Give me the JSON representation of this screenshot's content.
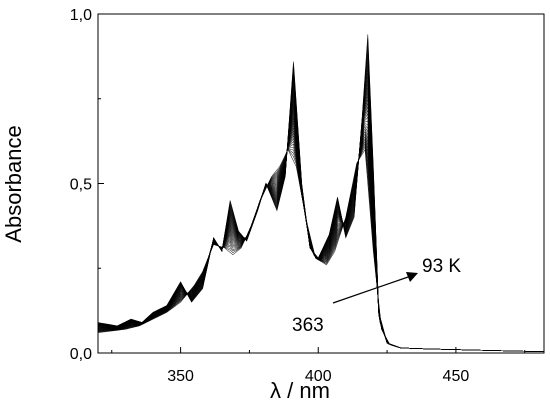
{
  "chart_data": {
    "type": "line",
    "xlabel": "λ / nm",
    "ylabel": "Absorbance",
    "xlim": [
      320,
      482
    ],
    "ylim": [
      0,
      1.0
    ],
    "x_ticks": [
      350,
      400,
      450
    ],
    "y_ticks": [
      0.0,
      0.5,
      1.0
    ],
    "x_tick_labels": [
      "350",
      "400",
      "450"
    ],
    "y_tick_labels": [
      "0,0",
      "0,5",
      "1,0"
    ],
    "grid": false,
    "legend": "none",
    "line_color": "#000000",
    "annotations": {
      "start_label": "363",
      "end_label": "93 K"
    },
    "series_note": "family of spectra from 363 K to 93 K",
    "series_count": 40,
    "series_highT": {
      "name": "363",
      "x": [
        320,
        330,
        335,
        340,
        345,
        350,
        355,
        358,
        362,
        366,
        369,
        372,
        376,
        379,
        383,
        386,
        389,
        392,
        396,
        399,
        403,
        406,
        410,
        414,
        417,
        420,
        423,
        426,
        430,
        440,
        450,
        460,
        470,
        482
      ],
      "y": [
        0.06,
        0.07,
        0.08,
        0.1,
        0.12,
        0.15,
        0.2,
        0.24,
        0.32,
        0.31,
        0.29,
        0.31,
        0.38,
        0.45,
        0.52,
        0.55,
        0.6,
        0.55,
        0.38,
        0.28,
        0.26,
        0.3,
        0.4,
        0.56,
        0.6,
        0.3,
        0.07,
        0.025,
        0.015,
        0.012,
        0.01,
        0.008,
        0.006,
        0.004
      ]
    },
    "series_lowT": {
      "name": "93 K",
      "x": [
        320,
        327,
        332,
        336,
        340,
        345,
        350,
        354,
        358,
        362,
        365,
        368,
        371,
        374,
        378,
        381,
        385,
        388,
        391,
        394,
        397,
        400,
        404,
        407,
        410,
        413,
        416,
        418,
        420,
        422,
        425,
        430,
        440,
        450,
        460,
        470,
        482
      ],
      "y": [
        0.09,
        0.08,
        0.1,
        0.09,
        0.12,
        0.14,
        0.21,
        0.15,
        0.19,
        0.34,
        0.3,
        0.45,
        0.36,
        0.33,
        0.42,
        0.5,
        0.42,
        0.52,
        0.86,
        0.5,
        0.31,
        0.28,
        0.35,
        0.46,
        0.34,
        0.4,
        0.7,
        0.94,
        0.55,
        0.12,
        0.03,
        0.015,
        0.012,
        0.01,
        0.008,
        0.006,
        0.004
      ]
    }
  }
}
